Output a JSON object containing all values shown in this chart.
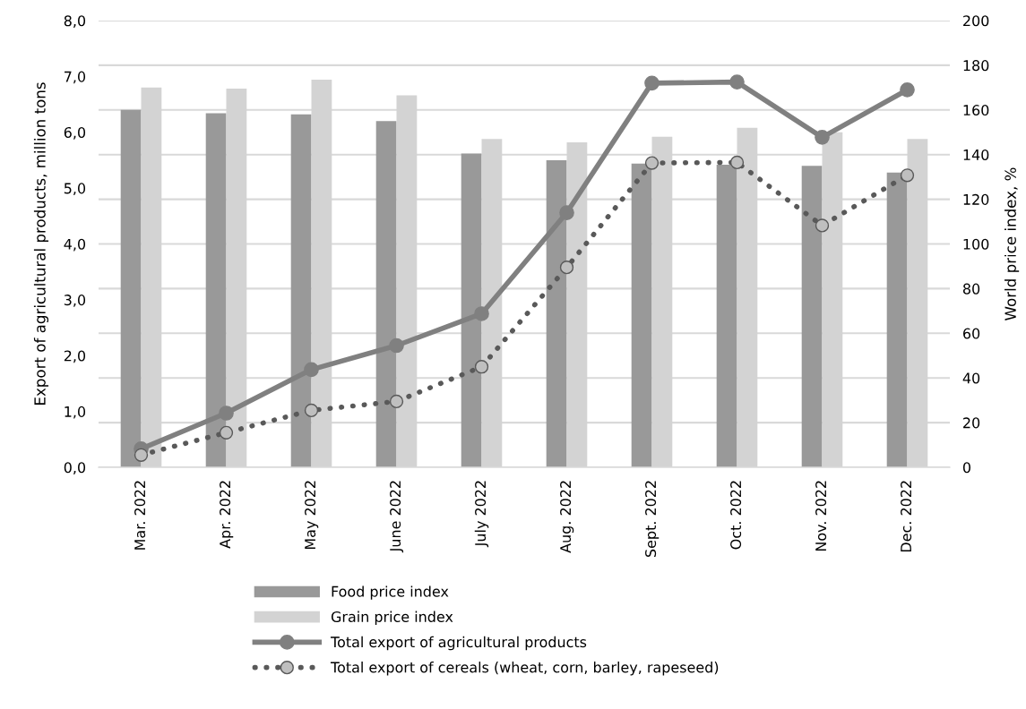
{
  "chart_data": {
    "type": "bar",
    "ylabel": "Export of agricultural products, million tons",
    "y2label": "World price index, %",
    "categories": [
      "Mar. 2022",
      "Apr. 2022",
      "May 2022",
      "June 2022",
      "July 2022",
      "Aug. 2022",
      "Sept. 2022",
      "Oct. 2022",
      "Nov. 2022",
      "Dec. 2022"
    ],
    "series": [
      {
        "name": "Food price index",
        "axis": "y2",
        "color": "#999999",
        "values": [
          160,
          158.5,
          158,
          155,
          140.5,
          137.5,
          136,
          135.5,
          135,
          132
        ]
      },
      {
        "name": "Grain price index",
        "axis": "y2",
        "color": "#d3d3d3",
        "values": [
          170,
          169.5,
          173.5,
          166.5,
          147,
          145.5,
          148,
          152,
          150,
          147
        ]
      },
      {
        "name": "Total export of agricultural products",
        "type": "line",
        "axis": "y",
        "color": "#808080",
        "marker": "circle",
        "line_style": "solid",
        "values": [
          0.33,
          0.97,
          1.75,
          2.18,
          2.75,
          4.56,
          6.88,
          6.9,
          5.91,
          6.76
        ]
      },
      {
        "name": "Total export of cereals (wheat, corn, barley, rapeseed)",
        "type": "line",
        "axis": "y",
        "color": "#595959",
        "marker": "circle",
        "line_style": "dotted",
        "values": [
          0.22,
          0.62,
          1.02,
          1.18,
          1.8,
          3.58,
          5.45,
          5.46,
          4.33,
          5.23
        ]
      }
    ],
    "ylim": [
      0,
      8
    ],
    "yticks": [
      {
        "value": 0,
        "label": "0,0"
      },
      {
        "value": 1,
        "label": "1,0"
      },
      {
        "value": 2,
        "label": "2,0"
      },
      {
        "value": 3,
        "label": "3,0"
      },
      {
        "value": 4,
        "label": "4,0"
      },
      {
        "value": 5,
        "label": "5,0"
      },
      {
        "value": 6,
        "label": "6,0"
      },
      {
        "value": 7,
        "label": "7,0"
      },
      {
        "value": 8,
        "label": "8,0"
      }
    ],
    "y2lim": [
      0,
      200
    ],
    "y2ticks": [
      0,
      20,
      40,
      60,
      80,
      100,
      120,
      140,
      160,
      180,
      200
    ],
    "grid": "y",
    "legend": "bottom"
  }
}
